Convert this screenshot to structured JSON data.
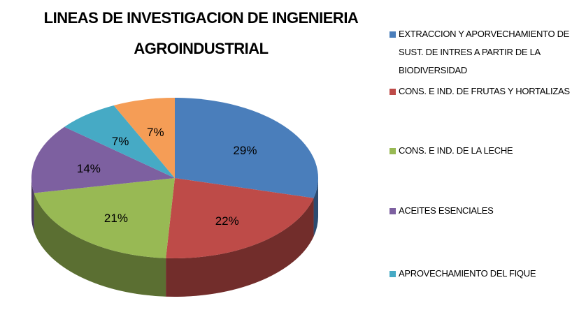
{
  "chart_data": {
    "type": "pie",
    "title": "LINEAS DE INVESTIGACION DE INGENIERIA AGROINDUSTRIAL",
    "categories": [
      "EXTRACCION Y APORVECHAMIENTO DE SUST. DE INTRES A PARTIR DE LA BIODIVERSIDAD",
      "CONS. E IND. DE FRUTAS Y HORTALIZAS",
      "CONS. E IND. DE LA LECHE",
      "ACEITES ESENCIALES",
      "APROVECHAMIENTO DEL FIQUE",
      null
    ],
    "values": [
      29,
      22,
      21,
      14,
      7,
      7
    ],
    "value_labels": [
      "29%",
      "22%",
      "21%",
      "14%",
      "7%",
      "7%"
    ],
    "colors": [
      "#4a7ebb",
      "#be4b48",
      "#98b954",
      "#7d60a0",
      "#46aac5",
      "#f59d56"
    ],
    "legend": "right"
  }
}
